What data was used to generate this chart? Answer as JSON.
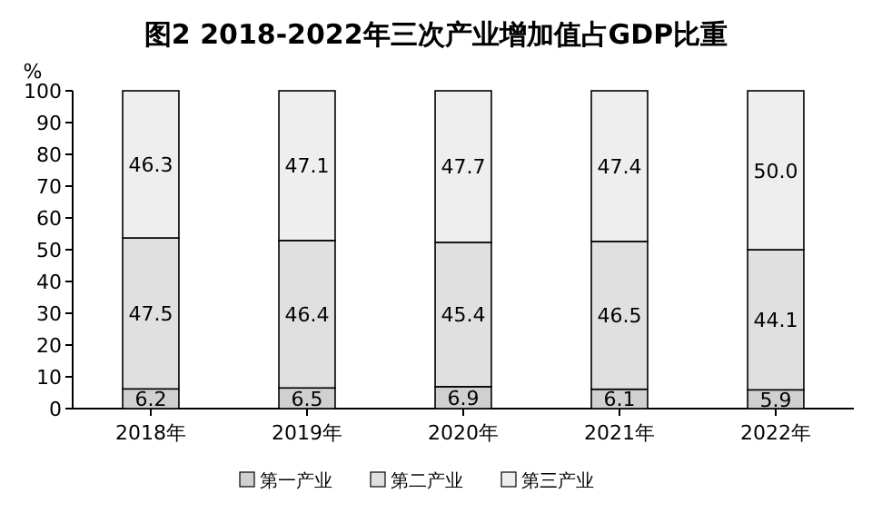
{
  "chart_data": {
    "type": "bar",
    "stacked": true,
    "title": "图2 2018-2022年三次产业增加值占GDP比重",
    "ylabel": "%",
    "categories": [
      "2018年",
      "2019年",
      "2020年",
      "2021年",
      "2022年"
    ],
    "series": [
      {
        "name": "第一产业",
        "color": "#d0d0d0",
        "values": [
          6.2,
          6.5,
          6.9,
          6.1,
          5.9
        ],
        "value_labels": [
          "6.2",
          "6.5",
          "6.9",
          "6.1",
          "5.9"
        ]
      },
      {
        "name": "第二产业",
        "color": "#e0e0e0",
        "values": [
          47.5,
          46.4,
          45.4,
          46.5,
          44.1
        ],
        "value_labels": [
          "47.5",
          "46.4",
          "45.4",
          "46.5",
          "44.1"
        ]
      },
      {
        "name": "第三产业",
        "color": "#eeeeee",
        "values": [
          46.3,
          47.1,
          47.7,
          47.4,
          50.0
        ],
        "value_labels": [
          "46.3",
          "47.1",
          "47.7",
          "47.4",
          "50.0"
        ]
      }
    ],
    "ylim": [
      0,
      100
    ],
    "yticks": [
      0,
      10,
      20,
      30,
      40,
      50,
      60,
      70,
      80,
      90,
      100
    ],
    "legend": "bottom",
    "grid": false
  }
}
